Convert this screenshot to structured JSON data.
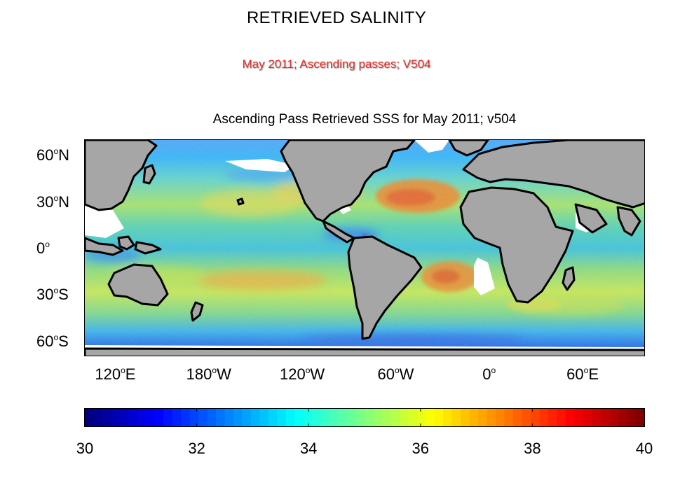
{
  "slide": {
    "title": "RETRIEVED SALINITY",
    "subtitle": "May 2011;  Ascending passes; V504"
  },
  "map": {
    "title": "Ascending Pass Retrieved SSS for May 2011; v504",
    "projection": "equirectangular, centered on Pacific",
    "lat_range": [
      -70,
      70
    ],
    "lon_range_start": "100°E",
    "lat_ticks": [
      {
        "value": 60,
        "num": "60",
        "hemi": "N"
      },
      {
        "value": 30,
        "num": "30",
        "hemi": "N"
      },
      {
        "value": 0,
        "num": "0",
        "hemi": ""
      },
      {
        "value": -30,
        "num": "30",
        "hemi": "S"
      },
      {
        "value": -60,
        "num": "60",
        "hemi": "S"
      }
    ],
    "lon_ticks": [
      {
        "value": 120,
        "num": "120",
        "hemi": "E"
      },
      {
        "value": 180,
        "num": "180",
        "hemi": "W"
      },
      {
        "value": 240,
        "num": "120",
        "hemi": "W"
      },
      {
        "value": 300,
        "num": "60",
        "hemi": "W"
      },
      {
        "value": 360,
        "num": "0",
        "hemi": ""
      },
      {
        "value": 420,
        "num": "60",
        "hemi": "E"
      }
    ],
    "land_color": "#a6a6a6",
    "coastline_color": "#000000",
    "no_data_color": "#ffffff"
  },
  "colorbar": {
    "min": 30,
    "max": 40,
    "colormap": "jet",
    "tick_labels": [
      "30",
      "32",
      "34",
      "36",
      "38",
      "40"
    ]
  }
}
